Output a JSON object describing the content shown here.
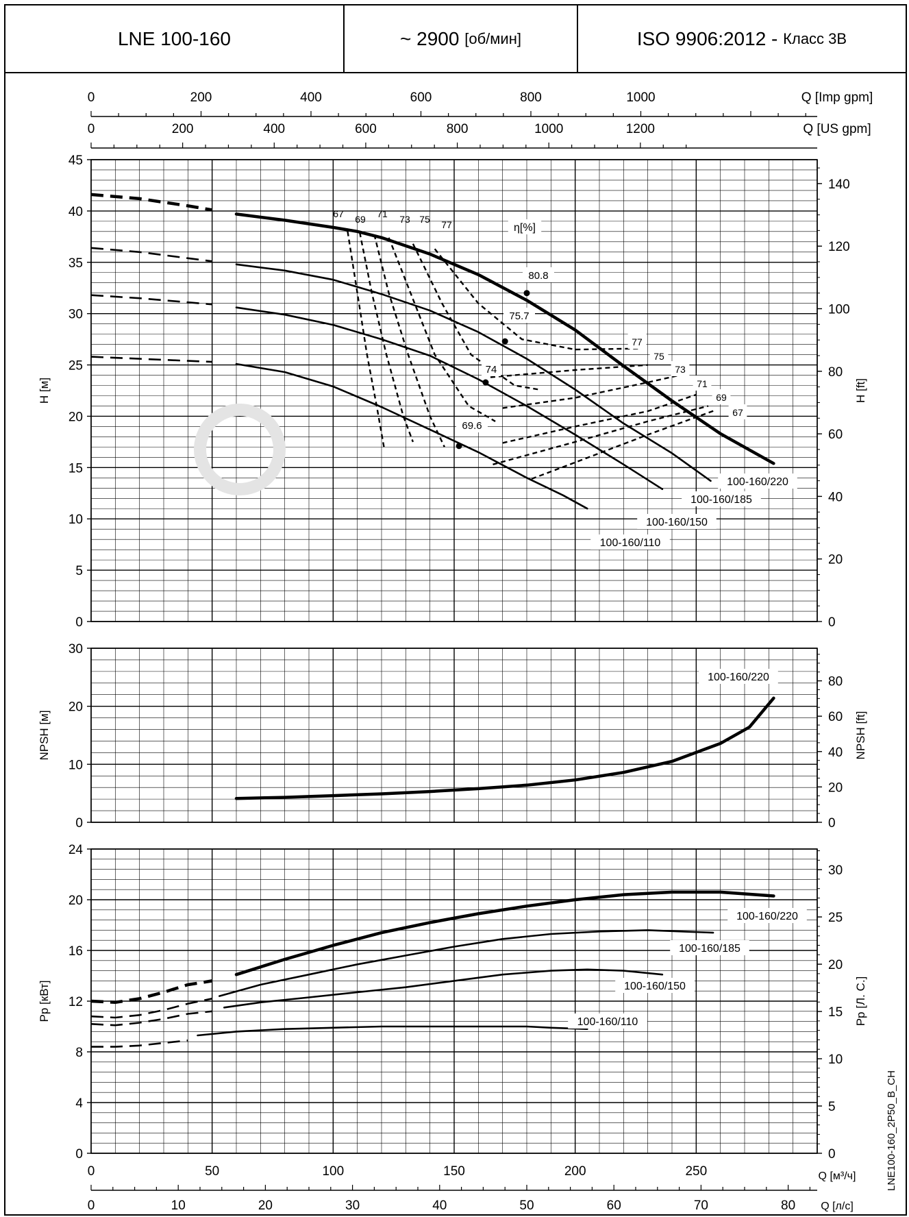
{
  "header": {
    "model": "LNE 100-160",
    "speed_value": "~ 2900",
    "speed_unit": "[об/мин]",
    "standard": "ISO 9906:2012 -",
    "class_label": "Класс 3B"
  },
  "side_code": "LNE100-160_2P50_B_CH",
  "chart_data": [
    {
      "type": "line",
      "id": "head",
      "ylabel": "H [м]",
      "y2label": "H [ft]",
      "ylim": [
        0,
        45
      ],
      "yticks": [
        0,
        5,
        10,
        15,
        20,
        25,
        30,
        35,
        40,
        45
      ],
      "y2ticks": [
        0,
        20,
        40,
        60,
        80,
        100,
        120,
        140
      ],
      "xlim": [
        0,
        300
      ],
      "top_axes": [
        {
          "label": "Q [Imp gpm]",
          "ticks": [
            0,
            200,
            400,
            600,
            800,
            1000
          ]
        },
        {
          "label": "Q [US gpm]",
          "ticks": [
            0,
            200,
            400,
            600,
            800,
            1000,
            1200
          ]
        }
      ],
      "series": [
        {
          "name": "100-160/220",
          "dashed": [
            [
              0,
              41.6
            ],
            [
              20,
              41.2
            ],
            [
              40,
              40.5
            ],
            [
              50,
              40.1
            ]
          ],
          "points": [
            [
              60,
              39.7
            ],
            [
              80,
              39.1
            ],
            [
              100,
              38.4
            ],
            [
              110,
              38.0
            ],
            [
              120,
              37.4
            ],
            [
              140,
              35.8
            ],
            [
              160,
              33.8
            ],
            [
              180,
              31.3
            ],
            [
              200,
              28.4
            ],
            [
              220,
              24.9
            ],
            [
              240,
              21.5
            ],
            [
              260,
              18.3
            ],
            [
              282,
              15.4
            ]
          ]
        },
        {
          "name": "100-160/185",
          "dashed": [
            [
              0,
              36.4
            ],
            [
              20,
              36.0
            ],
            [
              40,
              35.4
            ],
            [
              50,
              35.1
            ]
          ],
          "points": [
            [
              60,
              34.8
            ],
            [
              80,
              34.2
            ],
            [
              100,
              33.3
            ],
            [
              120,
              31.9
            ],
            [
              140,
              30.3
            ],
            [
              160,
              28.2
            ],
            [
              180,
              25.6
            ],
            [
              200,
              22.6
            ],
            [
              220,
              19.3
            ],
            [
              240,
              16.4
            ],
            [
              256,
              13.7
            ]
          ]
        },
        {
          "name": "100-160/150",
          "dashed": [
            [
              0,
              31.8
            ],
            [
              20,
              31.5
            ],
            [
              40,
              31.1
            ],
            [
              50,
              30.9
            ]
          ],
          "points": [
            [
              60,
              30.6
            ],
            [
              80,
              29.9
            ],
            [
              100,
              28.9
            ],
            [
              120,
              27.5
            ],
            [
              140,
              25.9
            ],
            [
              160,
              23.6
            ],
            [
              180,
              21.0
            ],
            [
              200,
              18.2
            ],
            [
              220,
              15.3
            ],
            [
              236,
              12.9
            ]
          ]
        },
        {
          "name": "100-160/110",
          "dashed": [
            [
              0,
              25.8
            ],
            [
              20,
              25.6
            ],
            [
              40,
              25.4
            ],
            [
              50,
              25.3
            ]
          ],
          "points": [
            [
              60,
              25.1
            ],
            [
              80,
              24.3
            ],
            [
              100,
              22.9
            ],
            [
              120,
              20.9
            ],
            [
              140,
              18.7
            ],
            [
              160,
              16.5
            ],
            [
              180,
              14.0
            ],
            [
              195,
              12.3
            ],
            [
              205,
              11.0
            ]
          ]
        }
      ],
      "efficiency_title": "η[%]",
      "efficiency_curves": [
        {
          "label": "67",
          "points": [
            [
              106,
              38.0
            ],
            [
              110,
              32.0
            ],
            [
              114,
              26.0
            ],
            [
              118,
              21.0
            ],
            [
              121,
              17.0
            ]
          ]
        },
        {
          "label": "69",
          "points": [
            [
              111,
              37.9
            ],
            [
              116,
              32.0
            ],
            [
              122,
              26.0
            ],
            [
              129,
              20.0
            ],
            [
              133,
              17.5
            ]
          ]
        },
        {
          "label": "71",
          "points": [
            [
              117,
              37.7
            ],
            [
              123,
              32.0
            ],
            [
              131,
              26.0
            ],
            [
              140,
              20.0
            ],
            [
              146,
              17.0
            ]
          ]
        },
        {
          "label": "73",
          "points": [
            [
              123,
              37.4
            ],
            [
              132,
              32.0
            ],
            [
              142,
              26.0
            ],
            [
              156,
              21.0
            ],
            [
              167,
              19.5
            ]
          ]
        },
        {
          "label": "75",
          "points": [
            [
              133,
              36.8
            ],
            [
              145,
              31.0
            ],
            [
              157,
              26.0
            ],
            [
              175,
              23.0
            ],
            [
              185,
              22.6
            ]
          ]
        },
        {
          "label": "77",
          "points": [
            [
              142,
              36.3
            ],
            [
              160,
              31.0
            ],
            [
              178,
              27.5
            ],
            [
              200,
              26.5
            ],
            [
              226,
              26.6
            ]
          ]
        }
      ],
      "efficiency_right_lines": [
        {
          "label": "77",
          "points": [
            [
              226,
              26.6
            ]
          ]
        },
        {
          "label": "75",
          "points": [
            [
              165,
              23.8
            ],
            [
              180,
              24.1
            ],
            [
              200,
              24.5
            ],
            [
              230,
              25.0
            ]
          ]
        },
        {
          "label": "73",
          "points": [
            [
              170,
              20.8
            ],
            [
              200,
              21.8
            ],
            [
              230,
              23.3
            ],
            [
              245,
              24.1
            ]
          ]
        },
        {
          "label": "71",
          "points": [
            [
              170,
              17.4
            ],
            [
              200,
              19.0
            ],
            [
              230,
              20.5
            ],
            [
              250,
              22.1
            ]
          ]
        },
        {
          "label": "69",
          "points": [
            [
              166,
              15.3
            ],
            [
              200,
              17.5
            ],
            [
              230,
              19.5
            ],
            [
              255,
              21.0
            ]
          ]
        },
        {
          "label": "67",
          "points": [
            [
              182,
              13.9
            ],
            [
              200,
              15.5
            ],
            [
              230,
              18.2
            ],
            [
              258,
              20.6
            ]
          ]
        }
      ],
      "bep_points": [
        {
          "label": "80.8",
          "q": 180,
          "h": 32.0
        },
        {
          "label": "75.7",
          "q": 171,
          "h": 27.3
        },
        {
          "label": "74",
          "q": 163,
          "h": 23.3
        },
        {
          "label": "69.6",
          "q": 152,
          "h": 17.1
        }
      ]
    },
    {
      "type": "line",
      "id": "npsh",
      "ylabel": "NPSH [м]",
      "y2label": "NPSH [ft]",
      "ylim": [
        0,
        30
      ],
      "yticks": [
        0,
        10,
        20,
        30
      ],
      "y2ticks": [
        0,
        20,
        40,
        60,
        80
      ],
      "series": [
        {
          "name": "100-160/220",
          "points": [
            [
              60,
              4.1
            ],
            [
              80,
              4.3
            ],
            [
              100,
              4.6
            ],
            [
              120,
              4.9
            ],
            [
              140,
              5.3
            ],
            [
              160,
              5.8
            ],
            [
              180,
              6.4
            ],
            [
              200,
              7.3
            ],
            [
              220,
              8.6
            ],
            [
              240,
              10.5
            ],
            [
              260,
              13.6
            ],
            [
              272,
              16.4
            ],
            [
              282,
              21.4
            ]
          ]
        }
      ]
    },
    {
      "type": "line",
      "id": "power",
      "ylabel": "Pp [кВт]",
      "y2label": "Pр [Л. С.]",
      "ylim": [
        0,
        24
      ],
      "yticks": [
        0,
        4,
        8,
        12,
        16,
        20,
        24
      ],
      "y2ticks": [
        0,
        5,
        10,
        15,
        20,
        25,
        30
      ],
      "xlabel": "Q [м³/ч]",
      "xticks": [
        0,
        50,
        100,
        150,
        200,
        250
      ],
      "bottom_axis": {
        "label": "Q [л/с]",
        "ticks": [
          0,
          10,
          20,
          30,
          40,
          50,
          60,
          70,
          80
        ]
      },
      "series": [
        {
          "name": "100-160/220",
          "dashed": [
            [
              0,
              12.0
            ],
            [
              10,
              11.9
            ],
            [
              20,
              12.2
            ],
            [
              30,
              12.7
            ],
            [
              40,
              13.3
            ],
            [
              50,
              13.6
            ]
          ],
          "points": [
            [
              60,
              14.1
            ],
            [
              80,
              15.3
            ],
            [
              100,
              16.4
            ],
            [
              120,
              17.4
            ],
            [
              140,
              18.2
            ],
            [
              160,
              18.9
            ],
            [
              180,
              19.5
            ],
            [
              200,
              20.0
            ],
            [
              220,
              20.4
            ],
            [
              240,
              20.6
            ],
            [
              260,
              20.6
            ],
            [
              282,
              20.3
            ]
          ]
        },
        {
          "name": "100-160/185",
          "dashed": [
            [
              0,
              10.8
            ],
            [
              10,
              10.7
            ],
            [
              20,
              10.9
            ],
            [
              30,
              11.3
            ],
            [
              40,
              11.8
            ],
            [
              50,
              12.2
            ]
          ],
          "points": [
            [
              53,
              12.4
            ],
            [
              70,
              13.3
            ],
            [
              90,
              14.1
            ],
            [
              110,
              14.9
            ],
            [
              130,
              15.6
            ],
            [
              150,
              16.3
            ],
            [
              170,
              16.9
            ],
            [
              190,
              17.3
            ],
            [
              210,
              17.5
            ],
            [
              230,
              17.6
            ],
            [
              257,
              17.4
            ]
          ]
        },
        {
          "name": "100-160/150",
          "dashed": [
            [
              0,
              10.2
            ],
            [
              10,
              10.1
            ],
            [
              20,
              10.3
            ],
            [
              30,
              10.6
            ],
            [
              40,
              11.0
            ],
            [
              50,
              11.2
            ]
          ],
          "points": [
            [
              55,
              11.5
            ],
            [
              70,
              11.9
            ],
            [
              90,
              12.3
            ],
            [
              110,
              12.7
            ],
            [
              130,
              13.1
            ],
            [
              150,
              13.6
            ],
            [
              170,
              14.1
            ],
            [
              190,
              14.4
            ],
            [
              205,
              14.5
            ],
            [
              220,
              14.4
            ],
            [
              236,
              14.1
            ]
          ]
        },
        {
          "name": "100-160/110",
          "dashed": [
            [
              0,
              8.4
            ],
            [
              10,
              8.4
            ],
            [
              20,
              8.5
            ],
            [
              30,
              8.7
            ],
            [
              40,
              8.9
            ]
          ],
          "points": [
            [
              44,
              9.3
            ],
            [
              60,
              9.6
            ],
            [
              80,
              9.8
            ],
            [
              100,
              9.9
            ],
            [
              120,
              10.0
            ],
            [
              140,
              10.0
            ],
            [
              160,
              10.0
            ],
            [
              180,
              10.0
            ],
            [
              190,
              9.9
            ],
            [
              205,
              9.8
            ]
          ]
        }
      ]
    }
  ]
}
